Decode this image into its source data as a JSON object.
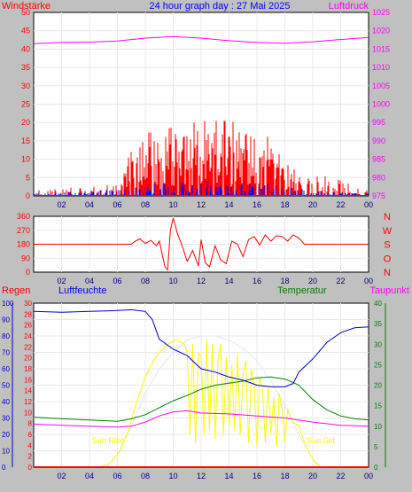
{
  "header": {
    "left_label": "Windstärke",
    "title": "24 hour graph day : 27 Mai 2025",
    "right_label": "Luftdruck"
  },
  "lower_header": {
    "regen": "Regen",
    "luftfeuchte": "Luftfeuchte",
    "temperatur": "Temperatur",
    "taupunkt": "Taupunkt"
  },
  "annotations": {
    "sunrise": "Sun Rise",
    "sunset": "Sun Set"
  },
  "colors": {
    "wind": "#ff0000",
    "gust": "#0000ff",
    "pressure": "#ff00ff",
    "humidity": "#0000c0",
    "temperature": "#008000",
    "dewpoint": "#ff00ff",
    "solar": "#ffff00",
    "rain": "#ff0000",
    "grid": "#e8e8e8",
    "plot_bg": "#ffffff"
  },
  "chart_data": [
    {
      "type": "bar",
      "xlabel_ticks": [
        "02",
        "04",
        "06",
        "08",
        "10",
        "12",
        "14",
        "16",
        "18",
        "20",
        "22",
        "00"
      ],
      "y_left_ticks": [
        "0",
        "5",
        "10",
        "15",
        "20",
        "25",
        "30",
        "35",
        "40",
        "45",
        "50"
      ],
      "y_right_ticks": [
        "975",
        "980",
        "985",
        "990",
        "995",
        "1000",
        "1005",
        "1010",
        "1015",
        "1020",
        "1025"
      ],
      "ylim_left": [
        0,
        50
      ],
      "ylim_right": [
        975,
        1025
      ],
      "x_range_hours": [
        0,
        24
      ],
      "series": [
        {
          "role": "wind",
          "profile": [
            [
              0,
              1.5
            ],
            [
              6,
              2
            ],
            [
              7,
              8
            ],
            [
              8,
              10
            ],
            [
              10,
              11
            ],
            [
              12,
              12
            ],
            [
              14,
              12
            ],
            [
              16,
              11
            ],
            [
              18,
              7
            ],
            [
              19,
              4
            ],
            [
              20,
              4
            ],
            [
              22,
              3
            ],
            [
              24,
              1
            ]
          ]
        },
        {
          "role": "gust",
          "profile": [
            [
              0,
              0.5
            ],
            [
              7,
              1.5
            ],
            [
              9,
              2.5
            ],
            [
              12,
              3
            ],
            [
              15,
              3
            ],
            [
              18,
              2
            ],
            [
              20,
              1
            ],
            [
              24,
              0.5
            ]
          ]
        },
        {
          "role": "pressure",
          "x": [
            0,
            2,
            4,
            6,
            8,
            10,
            12,
            14,
            16,
            18,
            20,
            22,
            24
          ],
          "values": [
            1016.5,
            1016.8,
            1016.9,
            1017.2,
            1018,
            1018.4,
            1018,
            1017.3,
            1016.8,
            1016.6,
            1017,
            1017.6,
            1018.2
          ]
        }
      ]
    },
    {
      "type": "line",
      "xlabel_ticks": [
        "02",
        "04",
        "06",
        "08",
        "10",
        "12",
        "14",
        "16",
        "18",
        "20",
        "22",
        "00"
      ],
      "y_left_ticks": [
        "360",
        "270",
        "180",
        "90",
        "0"
      ],
      "compass": [
        "N",
        "W",
        "S",
        "O",
        "N"
      ],
      "ylim": [
        0,
        360
      ],
      "x_range_hours": [
        0,
        24
      ],
      "series": [
        {
          "role": "wind_direction",
          "x": [
            0,
            6,
            7.0,
            7.2,
            7.6,
            8.0,
            8.4,
            8.8,
            9.0,
            9.4,
            9.6,
            9.8,
            10.0,
            10.3,
            10.6,
            11.0,
            11.4,
            11.8,
            12.0,
            12.3,
            12.6,
            13.0,
            13.4,
            13.8,
            14.2,
            14.6,
            15.0,
            15.4,
            15.8,
            16.2,
            16.6,
            17.0,
            17.4,
            17.8,
            18.2,
            18.6,
            19.0,
            19.4,
            24
          ],
          "values": [
            180,
            180,
            180,
            195,
            215,
            185,
            205,
            170,
            200,
            35,
            15,
            270,
            350,
            250,
            180,
            70,
            140,
            40,
            210,
            60,
            35,
            170,
            80,
            55,
            200,
            180,
            100,
            210,
            230,
            175,
            240,
            200,
            235,
            230,
            200,
            240,
            220,
            180,
            180
          ]
        }
      ]
    },
    {
      "type": "line",
      "xlabel_ticks": [
        "02",
        "04",
        "06",
        "08",
        "10",
        "12",
        "14",
        "16",
        "18",
        "20",
        "22",
        "00"
      ],
      "y_humidity_ticks": [
        "0",
        "10",
        "20",
        "30",
        "40",
        "50",
        "60",
        "70",
        "80",
        "90",
        "100"
      ],
      "y_rain_ticks": [
        "0",
        "2",
        "4",
        "6",
        "8",
        "10",
        "12",
        "14",
        "16",
        "18",
        "20",
        "22",
        "24",
        "26",
        "28",
        "30"
      ],
      "y_temp_ticks": [
        "0",
        "5",
        "10",
        "15",
        "20",
        "25",
        "30",
        "35",
        "40"
      ],
      "ylim_humidity": [
        0,
        100
      ],
      "ylim_temp": [
        0,
        40
      ],
      "x_range_hours": [
        0,
        24
      ],
      "series": [
        {
          "role": "humidity",
          "x": [
            0,
            2,
            4,
            6,
            7,
            8,
            8.5,
            9,
            10,
            11,
            12,
            13,
            14,
            15,
            16,
            17,
            18,
            18.6,
            19,
            20,
            21,
            22,
            23,
            24
          ],
          "values": [
            95,
            94.5,
            95,
            95.5,
            96,
            95,
            90,
            78,
            72,
            68,
            60,
            58,
            55,
            53,
            50,
            49,
            49,
            51,
            58,
            66,
            76,
            82,
            85,
            85.5
          ]
        },
        {
          "role": "temperature",
          "x": [
            0,
            2,
            4,
            6,
            7,
            8,
            9,
            10,
            11,
            12,
            13,
            14,
            15,
            16,
            17,
            18,
            18.5,
            19,
            20,
            21,
            22,
            23,
            24
          ],
          "values": [
            12.2,
            11.8,
            11.5,
            11.2,
            11.8,
            12.8,
            14.5,
            16.2,
            17.5,
            19.0,
            20.0,
            20.5,
            21.0,
            21.8,
            22.0,
            21.5,
            20.8,
            20.0,
            16.5,
            14.0,
            12.5,
            11.8,
            11.5
          ]
        },
        {
          "role": "dewpoint",
          "x": [
            0,
            2,
            4,
            6,
            7,
            8,
            9,
            10,
            11,
            12,
            14,
            16,
            18,
            20,
            22,
            24
          ],
          "values": [
            10.5,
            10.2,
            10.0,
            9.8,
            10.0,
            11.0,
            12.5,
            13.5,
            13.8,
            13.2,
            13.0,
            12.5,
            12.0,
            11.0,
            10.2,
            10.0
          ]
        },
        {
          "role": "solar",
          "x": [
            4.8,
            5.5,
            6.2,
            6.8,
            7.2,
            7.6,
            8.0,
            8.6,
            9.0,
            9.6,
            10.2,
            10.8,
            11.0,
            11.2,
            11.4,
            11.6,
            11.8,
            12.0,
            12.2,
            12.4,
            12.6,
            12.8,
            13.0,
            13.2,
            13.4,
            13.6,
            13.8,
            14.0,
            14.2,
            14.4,
            14.6,
            14.8,
            15.0,
            15.2,
            15.4,
            15.6,
            15.8,
            16.0,
            16.2,
            16.4,
            16.6,
            16.8,
            17.0,
            17.2,
            17.4,
            17.6,
            17.8,
            18.0,
            18.2,
            18.6,
            19.0,
            19.4,
            19.8,
            20.2,
            20.6
          ],
          "values": [
            0,
            1,
            4,
            9,
            14,
            18,
            22,
            26,
            28,
            30,
            31,
            30,
            28,
            8,
            30,
            6,
            28,
            27,
            8,
            31,
            9,
            30,
            7,
            26,
            30,
            8,
            27,
            10,
            25,
            9,
            28,
            8,
            22,
            26,
            6,
            24,
            20,
            5,
            22,
            19,
            6,
            20,
            8,
            17,
            5,
            18,
            14,
            6,
            14,
            11,
            10,
            6,
            3,
            1,
            0
          ]
        },
        {
          "role": "solar_envelope",
          "x": [
            5.2,
            6,
            7,
            8,
            9,
            10,
            11,
            12,
            13,
            14,
            15,
            16,
            17,
            18,
            19,
            20,
            20.6
          ],
          "values": [
            0,
            3,
            10,
            18,
            24,
            28,
            31,
            32,
            32,
            31,
            29,
            26,
            21,
            15,
            8,
            2,
            0
          ]
        },
        {
          "role": "rain",
          "x": [
            0,
            24
          ],
          "values": [
            0,
            0
          ]
        }
      ]
    }
  ]
}
